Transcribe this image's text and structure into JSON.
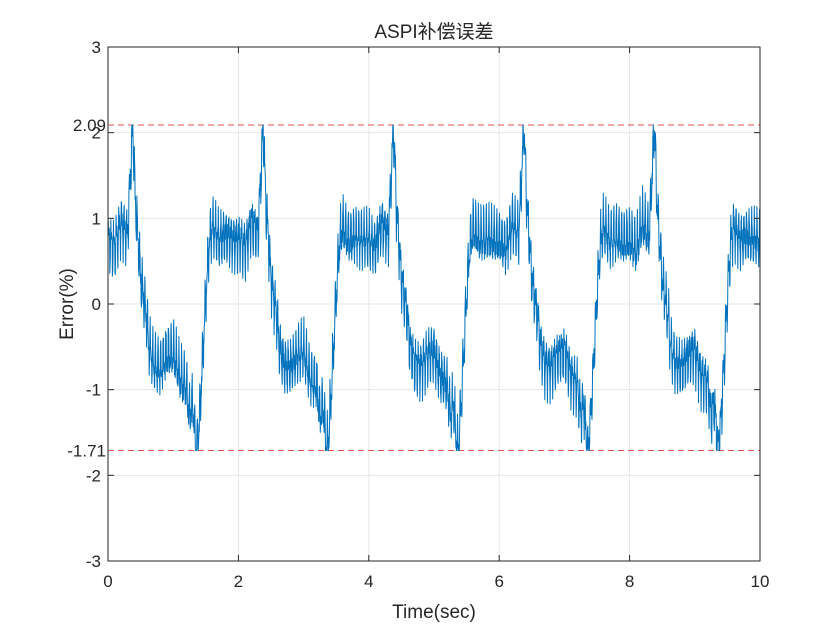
{
  "chart_data": {
    "type": "line",
    "title": "ASPI补偿误差",
    "xlabel": "Time(sec)",
    "ylabel": "Error(%)",
    "xlim": [
      0,
      10
    ],
    "ylim": [
      -3,
      3
    ],
    "x_ticks": [
      "0",
      "2",
      "4",
      "6",
      "8",
      "10"
    ],
    "y_ticks": [
      "-3",
      "-2",
      "-1",
      "0",
      "1",
      "2",
      "3"
    ],
    "grid": true,
    "line_color": "#0072BD",
    "reference_color": "#E05050",
    "reference_lines": [
      {
        "y": 2.09,
        "label": "2.09"
      },
      {
        "y": -1.71,
        "label": "-1.71"
      }
    ],
    "period": 2,
    "series": [
      {
        "x": [
          0,
          0.1,
          0.2,
          0.3,
          0.35,
          0.38,
          0.42,
          0.5,
          0.6,
          0.62,
          0.7,
          0.8,
          0.9,
          1.0,
          1.1,
          1.2,
          1.25,
          1.3,
          1.35,
          1.38,
          1.42,
          1.5,
          1.55,
          1.6,
          1.7,
          1.8,
          1.9,
          2.0
        ],
        "y": [
          0.75,
          0.65,
          0.95,
          0.8,
          1.6,
          2.09,
          1.2,
          0.3,
          -0.2,
          -0.45,
          -0.7,
          -0.75,
          -0.6,
          -0.55,
          -0.85,
          -0.95,
          -1.3,
          -1.15,
          -1.71,
          -1.6,
          -1.1,
          0.1,
          0.7,
          0.9,
          0.75,
          0.8,
          0.75,
          0.75
        ]
      }
    ]
  }
}
